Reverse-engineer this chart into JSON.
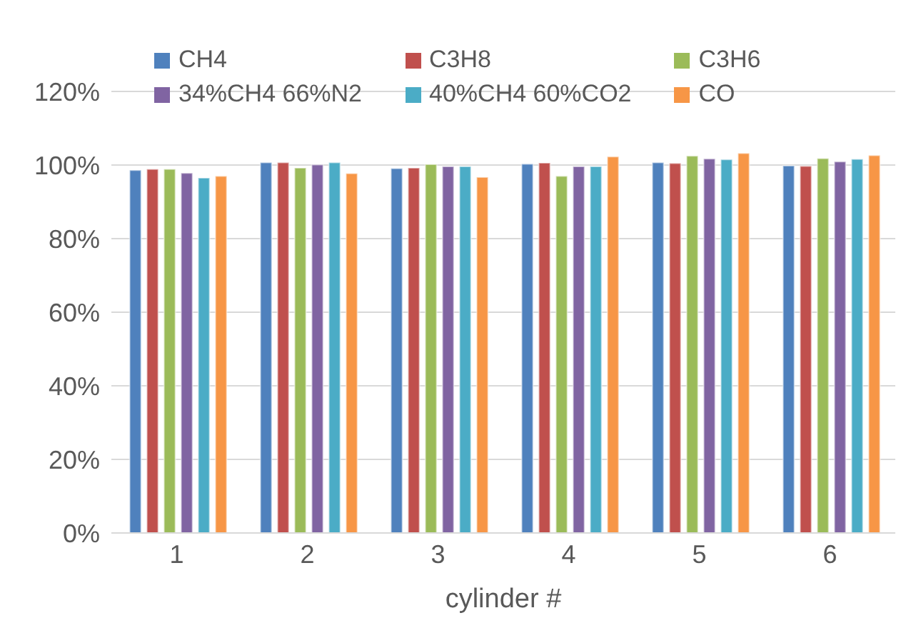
{
  "chart_data": {
    "type": "bar",
    "xlabel": "cylinder #",
    "categories": [
      "1",
      "2",
      "3",
      "4",
      "5",
      "6"
    ],
    "series": [
      {
        "name": "CH4",
        "color": "#4f81bd",
        "values": [
          98.6,
          100.7,
          99.1,
          100.3,
          100.7,
          99.8
        ]
      },
      {
        "name": "C3H8",
        "color": "#c0504d",
        "values": [
          98.9,
          100.7,
          99.2,
          100.6,
          100.5,
          99.7
        ]
      },
      {
        "name": "C3H6",
        "color": "#9bbb59",
        "values": [
          98.9,
          99.2,
          100.2,
          97.0,
          102.5,
          101.8
        ]
      },
      {
        "name": "34%CH4 66%N2",
        "color": "#8064a2",
        "values": [
          97.8,
          100.1,
          99.6,
          99.6,
          101.7,
          100.9
        ]
      },
      {
        "name": "40%CH4 60%CO2",
        "color": "#4bacc6",
        "values": [
          96.5,
          100.7,
          99.6,
          99.6,
          101.5,
          101.6
        ]
      },
      {
        "name": "CO",
        "color": "#f79646",
        "values": [
          97.0,
          97.7,
          96.7,
          102.3,
          103.2,
          102.6
        ]
      }
    ],
    "ylim": [
      0,
      120
    ],
    "yticks": [
      {
        "value": 0,
        "label": "0%"
      },
      {
        "value": 20,
        "label": "20%"
      },
      {
        "value": 40,
        "label": "40%"
      },
      {
        "value": 60,
        "label": "60%"
      },
      {
        "value": 80,
        "label": "80%"
      },
      {
        "value": 100,
        "label": "100%"
      },
      {
        "value": 120,
        "label": "120%"
      }
    ],
    "grid": "y",
    "legend": "top"
  }
}
